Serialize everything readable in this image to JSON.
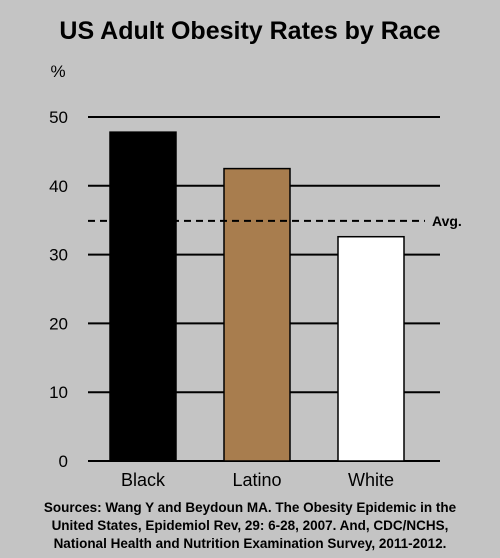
{
  "chart_data": {
    "type": "bar",
    "title": "US Adult Obesity Rates by Race",
    "ylabel": "%",
    "xlabel": "",
    "categories": [
      "Black",
      "Latino",
      "White"
    ],
    "values": [
      47.8,
      42.5,
      32.6
    ],
    "bar_colors": [
      "#000000",
      "#a87d4e",
      "#ffffff"
    ],
    "ylim": [
      0,
      50
    ],
    "yticks": [
      0,
      10,
      20,
      30,
      40,
      50
    ],
    "grid": true,
    "reference_line": {
      "label": "Avg.",
      "value": 34.9,
      "style": "dashed"
    },
    "source_lines": [
      "Sources: Wang Y and Beydoun MA. The Obesity Epidemic in the",
      "United States, Epidemiol Rev, 29: 6-28, 2007. And, CDC/NCHS,",
      "National Health and Nutrition Examination Survey, 2011-2012."
    ]
  }
}
